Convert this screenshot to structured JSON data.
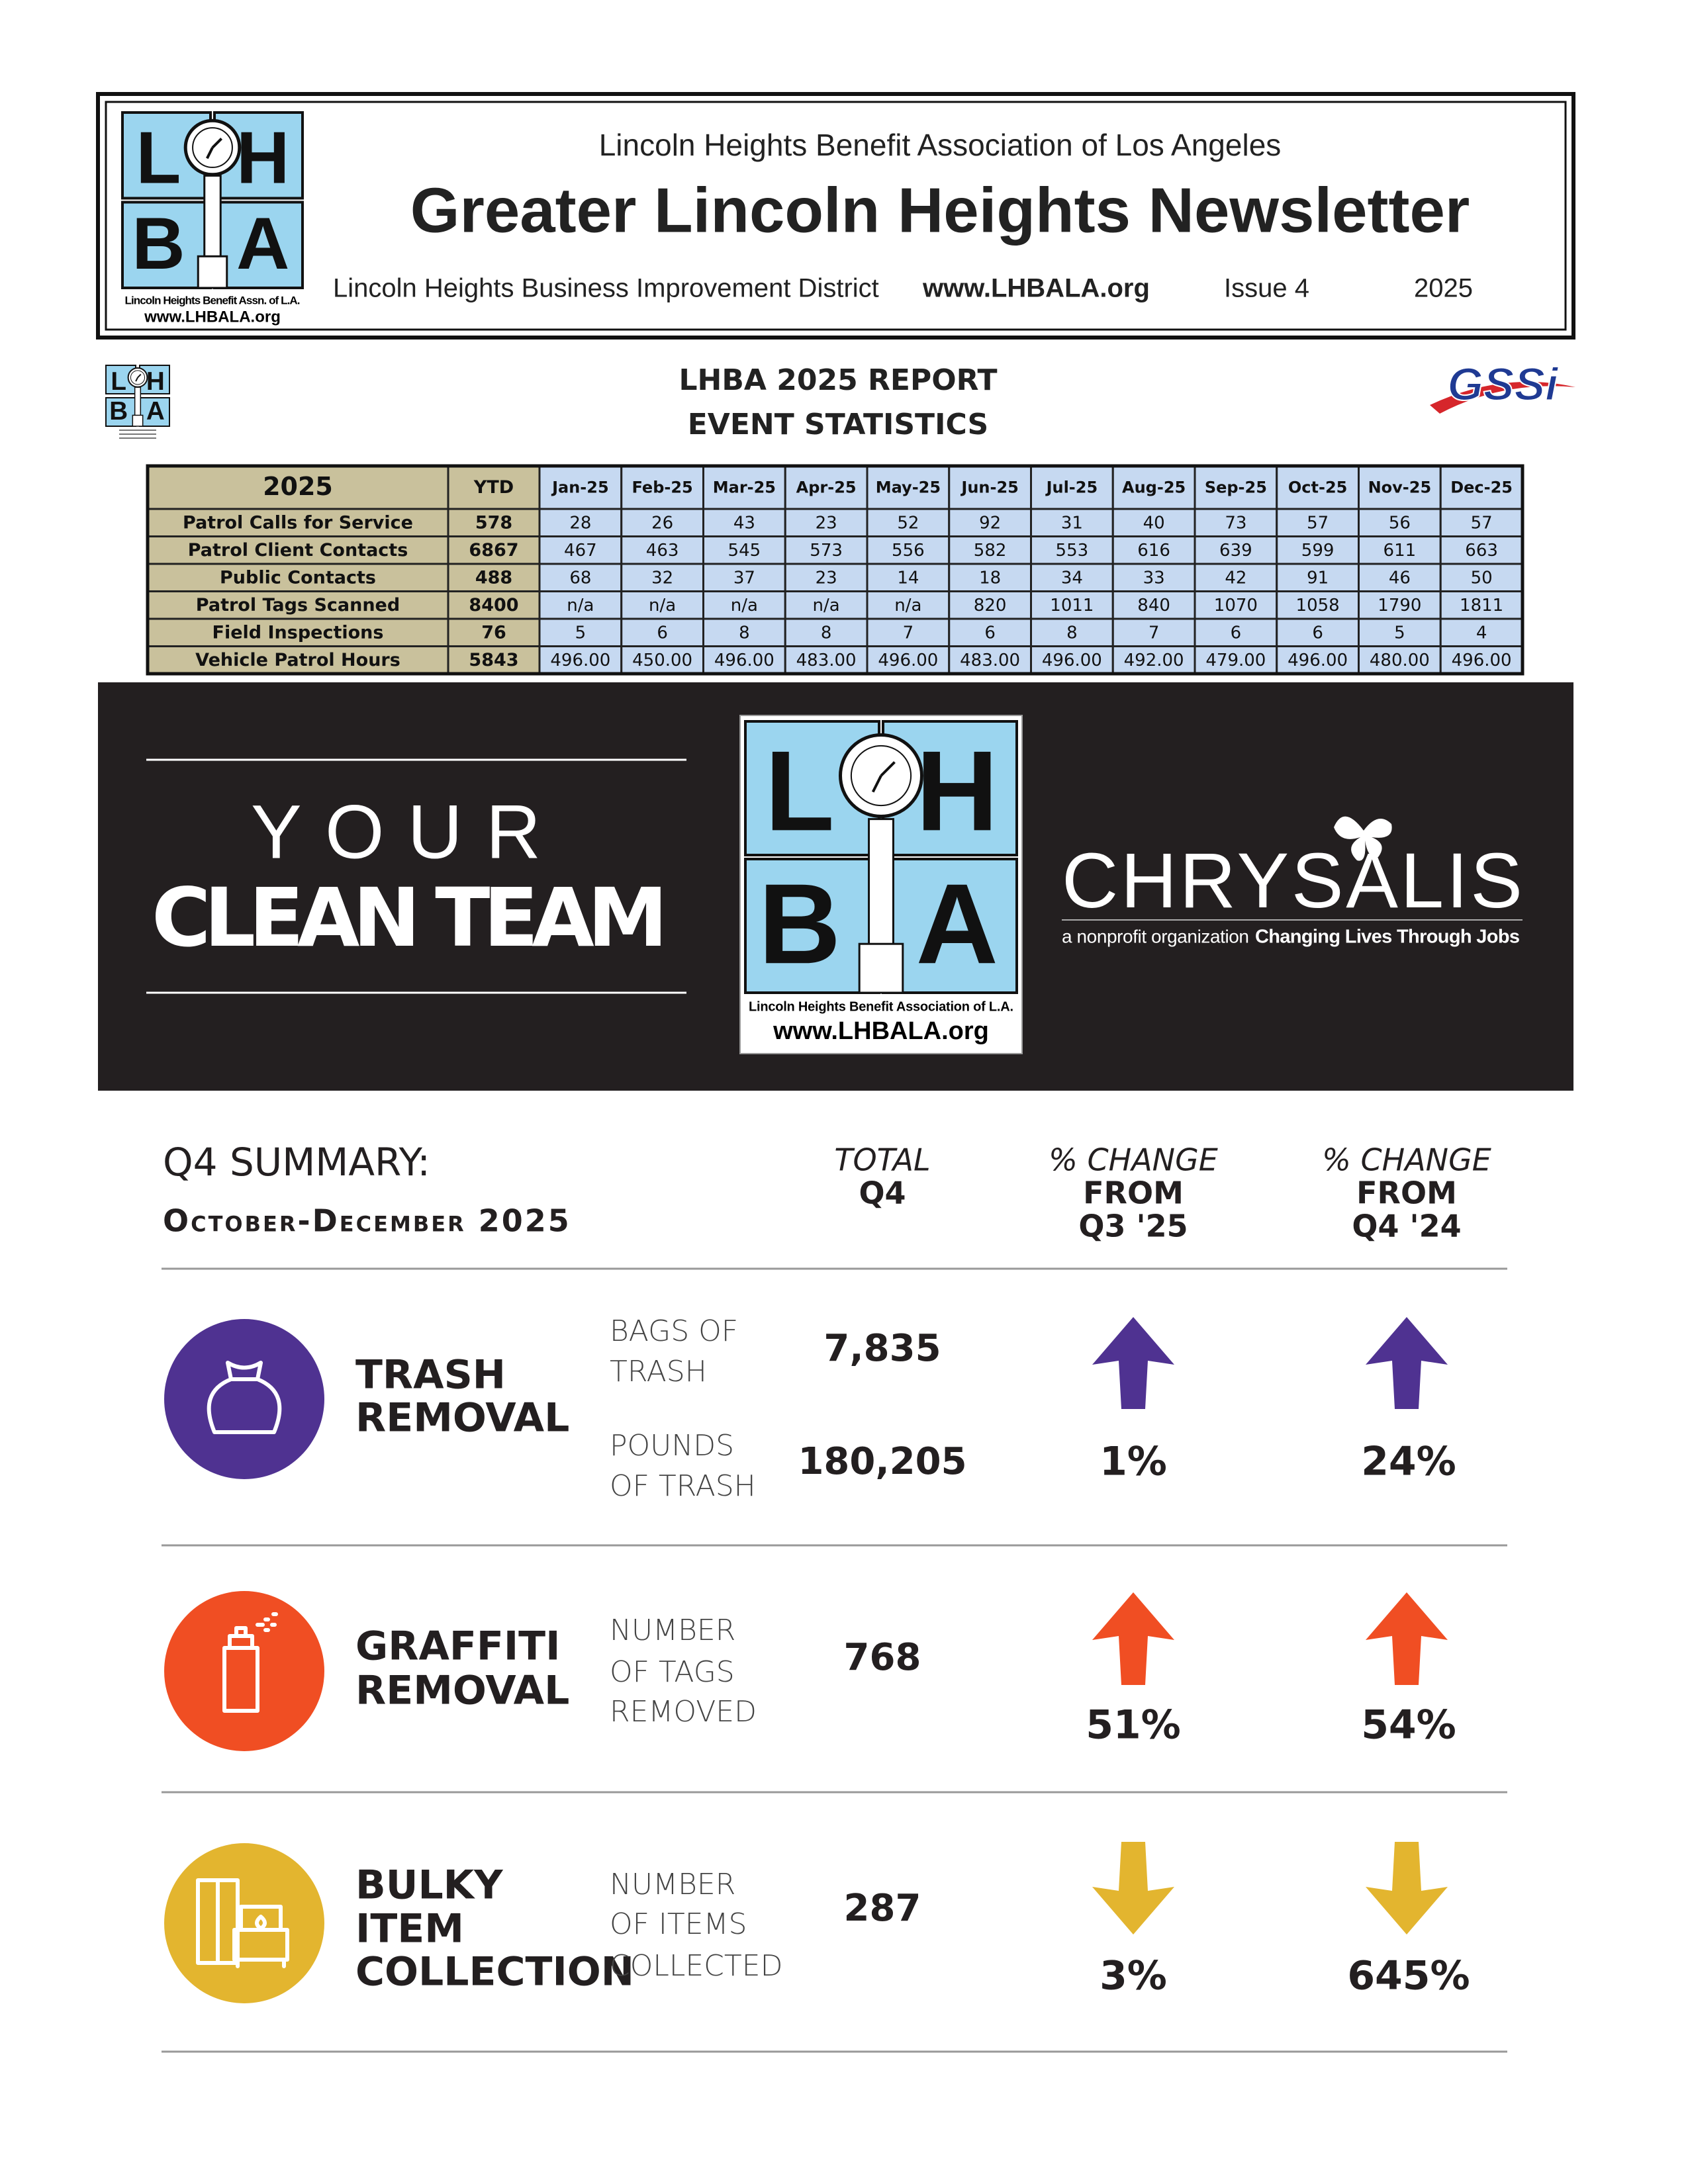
{
  "header": {
    "org": "Lincoln Heights Benefit Association of Los Angeles",
    "title": "Greater Lincoln Heights Newsletter",
    "district": "Lincoln Heights Business Improvement District",
    "url": "www.LHBALA.org",
    "issue": "Issue 4",
    "year": "2025",
    "logo": {
      "letters": [
        "L",
        "H",
        "B",
        "A"
      ],
      "caption": "Lincoln Heights Benefit Assn. of L.A.",
      "url": "www.LHBALA.org"
    }
  },
  "report": {
    "title": "LHBA 2025 REPORT",
    "subtitle": "EVENT STATISTICS",
    "partner": "GSSi",
    "logo": {
      "letters": [
        "L",
        "H",
        "B",
        "A"
      ]
    }
  },
  "table": {
    "header": {
      "year": "2025",
      "ytd": "YTD",
      "months": [
        "Jan-25",
        "Feb-25",
        "Mar-25",
        "Apr-25",
        "May-25",
        "Jun-25",
        "Jul-25",
        "Aug-25",
        "Sep-25",
        "Oct-25",
        "Nov-25",
        "Dec-25"
      ]
    },
    "rows": [
      {
        "label": "Patrol Calls for Service",
        "ytd": "578",
        "months": [
          "28",
          "26",
          "43",
          "23",
          "52",
          "92",
          "31",
          "40",
          "73",
          "57",
          "56",
          "57"
        ]
      },
      {
        "label": "Patrol Client Contacts",
        "ytd": "6867",
        "months": [
          "467",
          "463",
          "545",
          "573",
          "556",
          "582",
          "553",
          "616",
          "639",
          "599",
          "611",
          "663"
        ]
      },
      {
        "label": "Public Contacts",
        "ytd": "488",
        "months": [
          "68",
          "32",
          "37",
          "23",
          "14",
          "18",
          "34",
          "33",
          "42",
          "91",
          "46",
          "50"
        ]
      },
      {
        "label": "Patrol Tags Scanned",
        "ytd": "8400",
        "months": [
          "n/a",
          "n/a",
          "n/a",
          "n/a",
          "n/a",
          "820",
          "1011",
          "840",
          "1070",
          "1058",
          "1790",
          "1811"
        ]
      },
      {
        "label": "Field Inspections",
        "ytd": "76",
        "months": [
          "5",
          "6",
          "8",
          "8",
          "7",
          "6",
          "8",
          "7",
          "6",
          "6",
          "5",
          "4"
        ]
      },
      {
        "label": "Vehicle Patrol Hours",
        "ytd": "5843",
        "months": [
          "496.00",
          "450.00",
          "496.00",
          "483.00",
          "496.00",
          "483.00",
          "496.00",
          "492.00",
          "479.00",
          "496.00",
          "480.00",
          "496.00"
        ]
      }
    ]
  },
  "banner": {
    "your": "YOUR",
    "team": "CLEAN TEAM",
    "logo": {
      "letters": [
        "L",
        "H",
        "B",
        "A"
      ],
      "caption": "Lincoln Heights Benefit Association of L.A.",
      "url": "www.LHBALA.org"
    },
    "partner": "CHRYSALIS",
    "tagline": "a nonprofit organization",
    "motto": "Changing Lives Through Jobs"
  },
  "summary": {
    "title": "Q4 SUMMARY:",
    "period": "October-December 2025",
    "columns": [
      {
        "lines": [
          "TOTAL",
          "Q4"
        ]
      },
      {
        "lines": [
          "% CHANGE",
          "FROM",
          "Q3 '25"
        ]
      },
      {
        "lines": [
          "% CHANGE",
          "FROM",
          "Q4 '24"
        ]
      }
    ],
    "rows": [
      {
        "name": [
          "TRASH",
          "REMOVAL"
        ],
        "color": "#4f3291",
        "direction": "up",
        "metrics": [
          {
            "label": [
              "BAGS OF",
              "TRASH"
            ],
            "total": "7,835"
          },
          {
            "label": [
              "POUNDS",
              "OF TRASH"
            ],
            "total": "180,205"
          }
        ],
        "change_q3": "1%",
        "change_q4": "24%"
      },
      {
        "name": [
          "GRAFFITI",
          "REMOVAL"
        ],
        "color": "#f04e23",
        "direction": "up",
        "metrics": [
          {
            "label": [
              "NUMBER",
              "OF TAGS",
              "REMOVED"
            ],
            "total": "768"
          }
        ],
        "change_q3": "51%",
        "change_q4": "54%"
      },
      {
        "name": [
          "BULKY",
          "ITEM",
          "COLLECTION"
        ],
        "color": "#e3b52f",
        "direction": "down",
        "metrics": [
          {
            "label": [
              "NUMBER",
              "OF ITEMS",
              "COLLECTED"
            ],
            "total": "287"
          }
        ],
        "change_q3": "3%",
        "change_q4": "645%"
      }
    ]
  }
}
